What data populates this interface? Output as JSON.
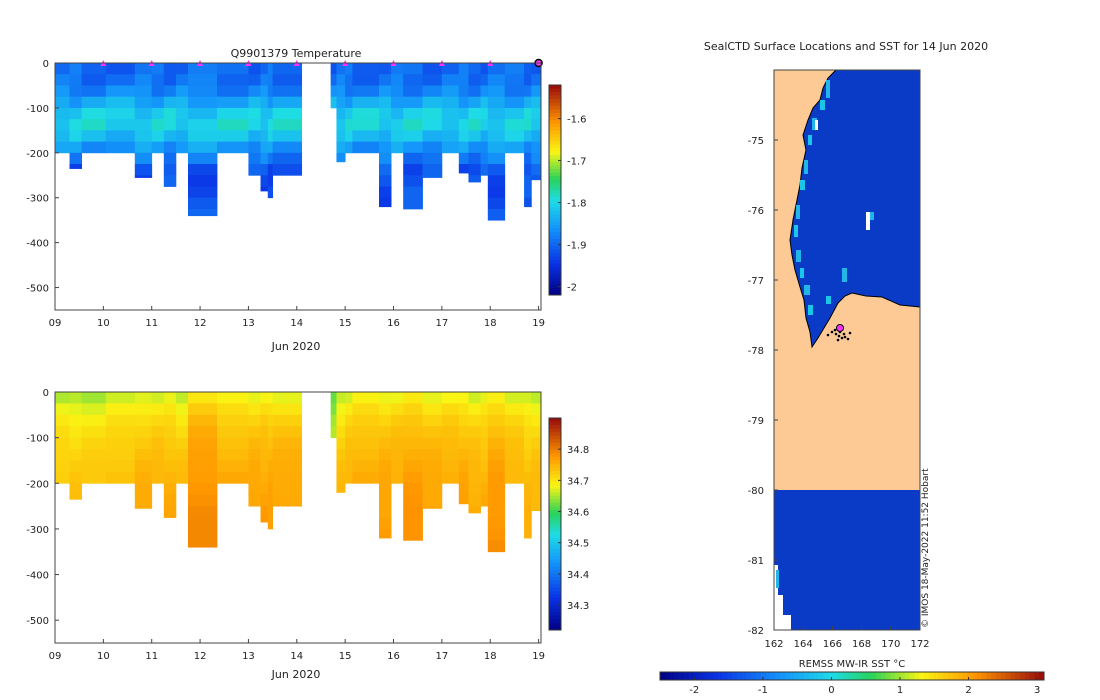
{
  "colors": {
    "land": "#fdca95",
    "ice": "#0a3bc6",
    "mark": "#ff33ff"
  },
  "chart_data": [
    {
      "id": "temperature",
      "type": "heatmap",
      "title": "Q9901379  Temperature",
      "xlabel": "Jun 2020",
      "x_ticks": [
        "09",
        "10",
        "11",
        "12",
        "13",
        "14",
        "15",
        "16",
        "17",
        "18",
        "19"
      ],
      "xlim": [
        9,
        19.05
      ],
      "ylim": [
        -550,
        0
      ],
      "y_ticks": [
        0,
        -100,
        -200,
        -300,
        -400,
        -500
      ],
      "colorbar": {
        "min": -2.02,
        "max": -1.52,
        "ticks": [
          -1.6,
          -1.7,
          -1.8,
          -1.9,
          -2
        ]
      },
      "profile_days": [
        10,
        11,
        12,
        13,
        14,
        15,
        16,
        17,
        18
      ],
      "last_profile_day": 19
    },
    {
      "id": "salinity",
      "type": "heatmap",
      "title": "",
      "xlabel": "Jun 2020",
      "x_ticks": [
        "09",
        "10",
        "11",
        "12",
        "13",
        "14",
        "15",
        "16",
        "17",
        "18",
        "19"
      ],
      "xlim": [
        9,
        19.05
      ],
      "ylim": [
        -550,
        0
      ],
      "y_ticks": [
        0,
        -100,
        -200,
        -300,
        -400,
        -500
      ],
      "colorbar": {
        "min": 34.22,
        "max": 34.9,
        "ticks": [
          34.8,
          34.7,
          34.6,
          34.5,
          34.4,
          34.3
        ]
      },
      "profiles": [
        {
          "t0": 9.0,
          "t1": 9.3,
          "depth": 200,
          "s": 34.71
        },
        {
          "t0": 9.3,
          "t1": 9.55,
          "depth": 235,
          "s": 34.71
        },
        {
          "t0": 9.55,
          "t1": 10.05,
          "depth": 200,
          "s": 34.71
        },
        {
          "t0": 10.05,
          "t1": 10.65,
          "depth": 200,
          "s": 34.72
        },
        {
          "t0": 10.65,
          "t1": 11.0,
          "depth": 255,
          "s": 34.73
        },
        {
          "t0": 11.0,
          "t1": 11.25,
          "depth": 200,
          "s": 34.73
        },
        {
          "t0": 11.25,
          "t1": 11.5,
          "depth": 275,
          "s": 34.73
        },
        {
          "t0": 11.5,
          "t1": 11.75,
          "depth": 200,
          "s": 34.72
        },
        {
          "t0": 11.75,
          "t1": 12.35,
          "depth": 340,
          "s": 34.76
        },
        {
          "t0": 12.35,
          "t1": 13.0,
          "depth": 200,
          "s": 34.74
        },
        {
          "t0": 13.0,
          "t1": 13.25,
          "depth": 250,
          "s": 34.74
        },
        {
          "t0": 13.25,
          "t1": 13.4,
          "depth": 285,
          "s": 34.74
        },
        {
          "t0": 13.4,
          "t1": 13.5,
          "depth": 300,
          "s": 34.74
        },
        {
          "t0": 13.5,
          "t1": 14.1,
          "depth": 250,
          "s": 34.74
        },
        {
          "t0": 14.7,
          "t1": 14.82,
          "depth": 100,
          "s": 34.66
        },
        {
          "t0": 14.82,
          "t1": 15.0,
          "depth": 220,
          "s": 34.72
        },
        {
          "t0": 15.0,
          "t1": 15.15,
          "depth": 200,
          "s": 34.73
        },
        {
          "t0": 15.15,
          "t1": 15.7,
          "depth": 200,
          "s": 34.74
        },
        {
          "t0": 15.7,
          "t1": 15.95,
          "depth": 320,
          "s": 34.74
        },
        {
          "t0": 15.95,
          "t1": 16.2,
          "depth": 200,
          "s": 34.74
        },
        {
          "t0": 16.2,
          "t1": 16.6,
          "depth": 325,
          "s": 34.75
        },
        {
          "t0": 16.6,
          "t1": 17.0,
          "depth": 255,
          "s": 34.74
        },
        {
          "t0": 17.0,
          "t1": 17.35,
          "depth": 200,
          "s": 34.74
        },
        {
          "t0": 17.35,
          "t1": 17.55,
          "depth": 245,
          "s": 34.74
        },
        {
          "t0": 17.55,
          "t1": 17.8,
          "depth": 265,
          "s": 34.73
        },
        {
          "t0": 17.8,
          "t1": 17.95,
          "depth": 250,
          "s": 34.73
        },
        {
          "t0": 17.95,
          "t1": 18.3,
          "depth": 350,
          "s": 34.75
        },
        {
          "t0": 18.3,
          "t1": 18.7,
          "depth": 200,
          "s": 34.73
        },
        {
          "t0": 18.7,
          "t1": 18.85,
          "depth": 320,
          "s": 34.72
        },
        {
          "t0": 18.85,
          "t1": 19.05,
          "depth": 260,
          "s": 34.72
        }
      ]
    },
    {
      "id": "sst-map",
      "type": "heatmap",
      "title": "SealCTD Surface Locations and SST for 14 Jun 2020",
      "x_ticks": [
        162,
        164,
        166,
        168,
        170,
        172
      ],
      "y_ticks": [
        -75,
        -76,
        -77,
        -78,
        -79,
        -80,
        -81,
        -82
      ],
      "xlim": [
        162,
        172
      ],
      "ylim": [
        -82,
        -74
      ],
      "colorbar": {
        "label": "REMSS MW-IR SST °C",
        "min": -2.5,
        "max": 3.1,
        "ticks": [
          -2,
          -1,
          0,
          1,
          2,
          3
        ]
      },
      "credit": "© IMOS 18-May-2022 11:52 Hobart",
      "last_location": {
        "lon": 166.7,
        "lat": -77.7
      }
    }
  ]
}
